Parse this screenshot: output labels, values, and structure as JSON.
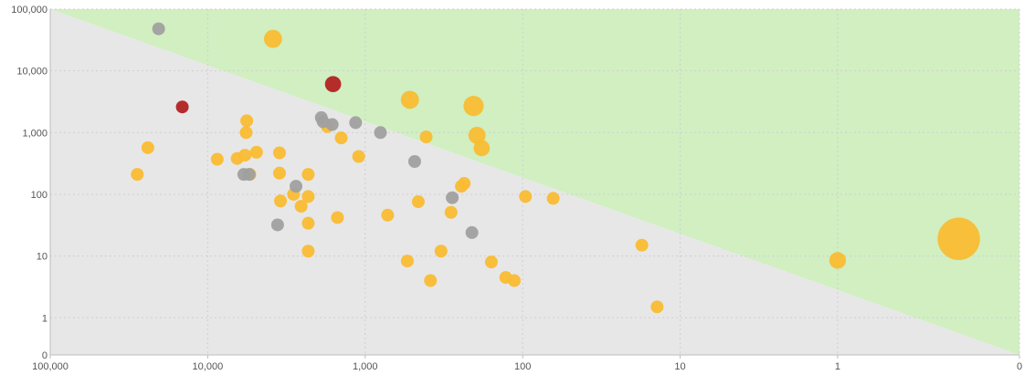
{
  "chart_data": {
    "type": "scatter",
    "title": "",
    "xlabel": "",
    "ylabel": "",
    "x_scale": "log-reversed",
    "y_scale": "log",
    "xlim": [
      100000,
      0.07
    ],
    "ylim": [
      0.25,
      100000
    ],
    "grid": true,
    "legend": "none",
    "x_ticks": [
      {
        "value": 100000,
        "label": "100,000"
      },
      {
        "value": 10000,
        "label": "10,000"
      },
      {
        "value": 1000,
        "label": "1,000"
      },
      {
        "value": 100,
        "label": "100"
      },
      {
        "value": 10,
        "label": "10"
      },
      {
        "value": 1,
        "label": "1"
      },
      {
        "value": 0.07,
        "label": "0"
      }
    ],
    "y_ticks": [
      {
        "value": 100000,
        "label": "100,000"
      },
      {
        "value": 10000,
        "label": "10,000"
      },
      {
        "value": 1000,
        "label": "1,000"
      },
      {
        "value": 100,
        "label": "100"
      },
      {
        "value": 10,
        "label": "10"
      },
      {
        "value": 1,
        "label": "1"
      },
      {
        "value": 0.25,
        "label": "0"
      }
    ],
    "regions": [
      {
        "name": "upper-region",
        "color": "#d1efc1"
      },
      {
        "name": "lower-region",
        "color": "#e7e7e7"
      }
    ],
    "boundary": {
      "from": [
        100000,
        100000
      ],
      "to": [
        0.07,
        0.25
      ]
    },
    "colors": {
      "orange": "#f9bc33",
      "gray": "#a0a0a0",
      "red": "#b22222"
    },
    "series": [
      {
        "color_key": "orange",
        "points": [
          {
            "x": 28000,
            "y": 210
          },
          {
            "x": 24000,
            "y": 570
          },
          {
            "x": 8700,
            "y": 370
          },
          {
            "x": 6500,
            "y": 380
          },
          {
            "x": 5800,
            "y": 430
          },
          {
            "x": 5700,
            "y": 1000
          },
          {
            "x": 5650,
            "y": 1550
          },
          {
            "x": 5400,
            "y": 210
          },
          {
            "x": 4900,
            "y": 480
          },
          {
            "x": 3850,
            "y": 33000,
            "size": 2
          },
          {
            "x": 3500,
            "y": 470
          },
          {
            "x": 3500,
            "y": 220
          },
          {
            "x": 3450,
            "y": 78
          },
          {
            "x": 2850,
            "y": 100
          },
          {
            "x": 2550,
            "y": 64
          },
          {
            "x": 2300,
            "y": 210
          },
          {
            "x": 2300,
            "y": 92
          },
          {
            "x": 2300,
            "y": 34
          },
          {
            "x": 2300,
            "y": 12
          },
          {
            "x": 1740,
            "y": 1250
          },
          {
            "x": 1500,
            "y": 42
          },
          {
            "x": 1420,
            "y": 820
          },
          {
            "x": 1100,
            "y": 410
          },
          {
            "x": 720,
            "y": 46
          },
          {
            "x": 540,
            "y": 8.3
          },
          {
            "x": 520,
            "y": 3400,
            "size": 2
          },
          {
            "x": 460,
            "y": 76
          },
          {
            "x": 410,
            "y": 850
          },
          {
            "x": 385,
            "y": 4
          },
          {
            "x": 330,
            "y": 12
          },
          {
            "x": 285,
            "y": 51
          },
          {
            "x": 245,
            "y": 135
          },
          {
            "x": 235,
            "y": 150
          },
          {
            "x": 205,
            "y": 2700,
            "size": 2.5
          },
          {
            "x": 195,
            "y": 900,
            "size": 1.8
          },
          {
            "x": 182,
            "y": 560,
            "size": 1.6
          },
          {
            "x": 158,
            "y": 8
          },
          {
            "x": 128,
            "y": 4.5
          },
          {
            "x": 113,
            "y": 4
          },
          {
            "x": 96,
            "y": 92
          },
          {
            "x": 64,
            "y": 86
          },
          {
            "x": 17.5,
            "y": 15
          },
          {
            "x": 14,
            "y": 1.5
          },
          {
            "x": 1.0,
            "y": 8.5,
            "size": 1.7
          },
          {
            "x": 0.17,
            "y": 19,
            "size": 11
          }
        ]
      },
      {
        "color_key": "gray",
        "points": [
          {
            "x": 20500,
            "y": 48000
          },
          {
            "x": 5900,
            "y": 210
          },
          {
            "x": 5450,
            "y": 210
          },
          {
            "x": 3600,
            "y": 32
          },
          {
            "x": 2750,
            "y": 135
          },
          {
            "x": 1900,
            "y": 1750
          },
          {
            "x": 1850,
            "y": 1500
          },
          {
            "x": 1620,
            "y": 1350
          },
          {
            "x": 1150,
            "y": 1450
          },
          {
            "x": 800,
            "y": 1000
          },
          {
            "x": 485,
            "y": 340
          },
          {
            "x": 280,
            "y": 88
          },
          {
            "x": 210,
            "y": 24
          }
        ]
      },
      {
        "color_key": "red",
        "points": [
          {
            "x": 14500,
            "y": 2600
          },
          {
            "x": 1600,
            "y": 6100,
            "size": 1.6
          }
        ]
      }
    ]
  }
}
